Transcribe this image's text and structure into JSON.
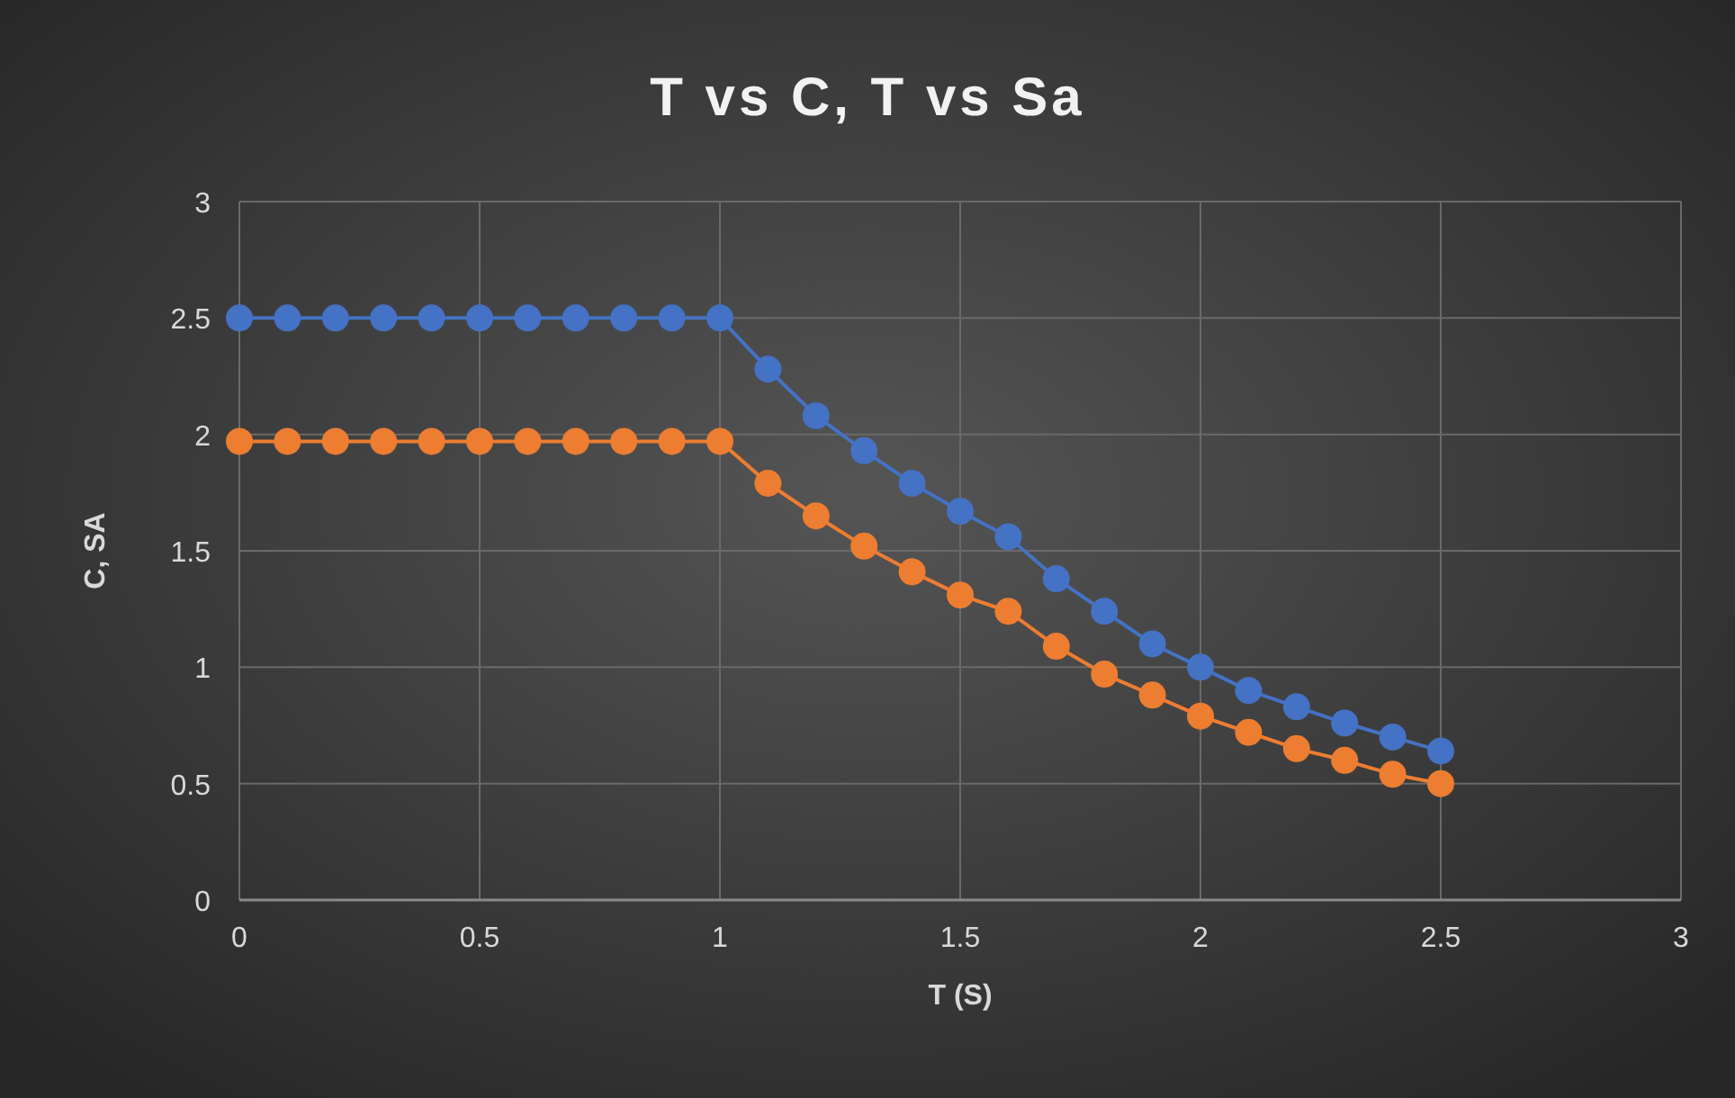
{
  "chart_data": {
    "type": "line",
    "title": "T vs C, T vs Sa",
    "xlabel": "T (S)",
    "ylabel": "C, SA",
    "x": [
      0,
      0.1,
      0.2,
      0.3,
      0.4,
      0.5,
      0.6,
      0.7,
      0.8,
      0.9,
      1,
      1.1,
      1.2,
      1.3,
      1.4,
      1.5,
      1.6,
      1.7,
      1.8,
      1.9,
      2,
      2.1,
      2.2,
      2.3,
      2.4,
      2.5
    ],
    "series": [
      {
        "color": "#4472c4",
        "values": [
          2.5,
          2.5,
          2.5,
          2.5,
          2.5,
          2.5,
          2.5,
          2.5,
          2.5,
          2.5,
          2.5,
          2.28,
          2.08,
          1.93,
          1.79,
          1.67,
          1.56,
          1.38,
          1.24,
          1.1,
          1.0,
          0.9,
          0.83,
          0.76,
          0.7,
          0.64
        ]
      },
      {
        "color": "#ed7d31",
        "values": [
          1.97,
          1.97,
          1.97,
          1.97,
          1.97,
          1.97,
          1.97,
          1.97,
          1.97,
          1.97,
          1.97,
          1.79,
          1.65,
          1.52,
          1.41,
          1.31,
          1.24,
          1.09,
          0.97,
          0.88,
          0.79,
          0.72,
          0.65,
          0.6,
          0.54,
          0.5
        ]
      }
    ],
    "xlim": [
      0,
      3
    ],
    "xticks": [
      0,
      0.5,
      1,
      1.5,
      2,
      2.5,
      3
    ],
    "ylim": [
      0,
      3
    ],
    "yticks": [
      0,
      0.5,
      1,
      1.5,
      2,
      2.5,
      3
    ],
    "grid": true,
    "marker": "circle",
    "line_style": "solid"
  }
}
